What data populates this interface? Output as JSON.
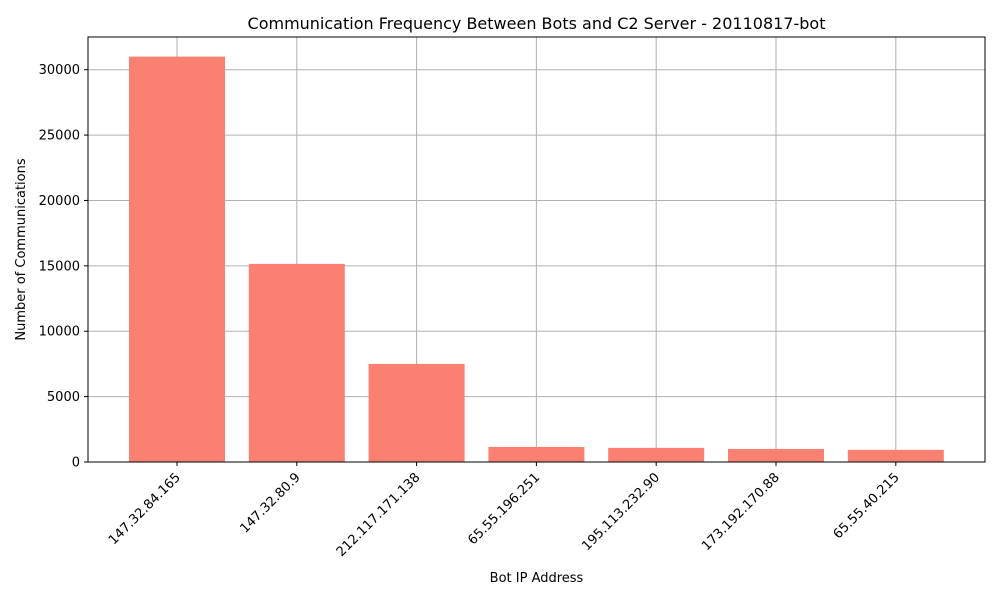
{
  "chart_data": {
    "type": "bar",
    "title": "Communication Frequency Between Bots and C2 Server - 20110817-bot",
    "xlabel": "Bot IP Address",
    "ylabel": "Number of Communications",
    "categories": [
      "147.32.84.165",
      "147.32.80.9",
      "212.117.171.138",
      "65.55.196.251",
      "195.113.232.90",
      "173.192.170.88",
      "65.55.40.215"
    ],
    "values": [
      31000,
      15150,
      7500,
      1150,
      1080,
      1000,
      930
    ],
    "ylim": [
      0,
      32500
    ],
    "yticks": [
      0,
      5000,
      10000,
      15000,
      20000,
      25000,
      30000
    ],
    "grid": true,
    "legend": "none",
    "bar_color": "#fa8072",
    "grid_color": "#b0b0b0"
  }
}
